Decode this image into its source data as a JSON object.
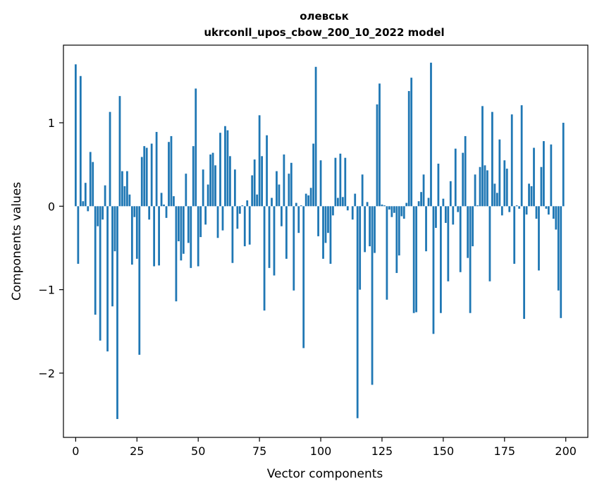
{
  "chart_data": {
    "type": "bar",
    "title_line1": "олевськ",
    "title_line2": "ukrconll_upos_cbow_200_10_2022 model",
    "xlabel": "Vector components",
    "ylabel": "Components values",
    "xlim": [
      -5,
      209
    ],
    "ylim": [
      -2.77,
      1.93
    ],
    "xticks": [
      0,
      25,
      50,
      75,
      100,
      125,
      150,
      175,
      200
    ],
    "yticks": [
      -2,
      -1,
      0,
      1
    ],
    "ytick_labels": [
      "−2",
      "−1",
      "0",
      "1"
    ],
    "bar_color": "#1f77b4",
    "grid": false,
    "legend": "none",
    "x": [
      0,
      1,
      2,
      3,
      4,
      5,
      6,
      7,
      8,
      9,
      10,
      11,
      12,
      13,
      14,
      15,
      16,
      17,
      18,
      19,
      20,
      21,
      22,
      23,
      24,
      25,
      26,
      27,
      28,
      29,
      30,
      31,
      32,
      33,
      34,
      35,
      36,
      37,
      38,
      39,
      40,
      41,
      42,
      43,
      44,
      45,
      46,
      47,
      48,
      49,
      50,
      51,
      52,
      53,
      54,
      55,
      56,
      57,
      58,
      59,
      60,
      61,
      62,
      63,
      64,
      65,
      66,
      67,
      68,
      69,
      70,
      71,
      72,
      73,
      74,
      75,
      76,
      77,
      78,
      79,
      80,
      81,
      82,
      83,
      84,
      85,
      86,
      87,
      88,
      89,
      90,
      91,
      92,
      93,
      94,
      95,
      96,
      97,
      98,
      99,
      100,
      101,
      102,
      103,
      104,
      105,
      106,
      107,
      108,
      109,
      110,
      111,
      112,
      113,
      114,
      115,
      116,
      117,
      118,
      119,
      120,
      121,
      122,
      123,
      124,
      125,
      126,
      127,
      128,
      129,
      130,
      131,
      132,
      133,
      134,
      135,
      136,
      137,
      138,
      139,
      140,
      141,
      142,
      143,
      144,
      145,
      146,
      147,
      148,
      149,
      150,
      151,
      152,
      153,
      154,
      155,
      156,
      157,
      158,
      159,
      160,
      161,
      162,
      163,
      164,
      165,
      166,
      167,
      168,
      169,
      170,
      171,
      172,
      173,
      174,
      175,
      176,
      177,
      178,
      179,
      180,
      181,
      182,
      183,
      184,
      185,
      186,
      187,
      188,
      189,
      190,
      191,
      192,
      193,
      194,
      195,
      196,
      197,
      198,
      199
    ],
    "values": [
      1.7,
      -0.69,
      1.56,
      0.06,
      0.28,
      -0.06,
      0.65,
      0.53,
      -1.3,
      -0.24,
      -1.61,
      -0.16,
      0.25,
      -1.74,
      1.13,
      -1.2,
      -0.54,
      -2.55,
      1.32,
      0.42,
      0.24,
      0.42,
      0.14,
      -0.7,
      -0.13,
      -0.63,
      -1.78,
      0.59,
      0.72,
      0.7,
      -0.16,
      0.75,
      -0.72,
      0.89,
      -0.71,
      0.16,
      0.02,
      -0.14,
      0.77,
      0.84,
      0.12,
      -1.14,
      -0.42,
      -0.65,
      -0.57,
      0.39,
      -0.44,
      -0.74,
      0.72,
      1.41,
      -0.72,
      -0.37,
      0.44,
      -0.22,
      0.26,
      0.62,
      0.64,
      0.49,
      -0.38,
      0.88,
      -0.29,
      0.96,
      0.91,
      0.6,
      -0.68,
      0.44,
      -0.27,
      -0.09,
      0.01,
      -0.48,
      0.07,
      -0.46,
      0.37,
      0.56,
      0.14,
      1.09,
      0.6,
      -1.25,
      0.85,
      -0.74,
      0.1,
      -0.83,
      0.42,
      0.26,
      -0.24,
      0.62,
      -0.63,
      0.39,
      0.52,
      -1.01,
      0.04,
      -0.32,
      0.01,
      -1.7,
      0.15,
      0.13,
      0.22,
      0.75,
      1.67,
      -0.36,
      0.55,
      -0.63,
      -0.44,
      -0.32,
      -0.69,
      -0.11,
      0.58,
      0.1,
      0.63,
      0.11,
      0.58,
      -0.05,
      0.0,
      -0.16,
      0.15,
      -2.54,
      -1.0,
      0.38,
      -0.55,
      0.05,
      -0.48,
      -2.14,
      -0.56,
      1.22,
      1.47,
      0.02,
      0.01,
      -1.12,
      -0.04,
      -0.13,
      -0.08,
      -0.8,
      -0.59,
      -0.12,
      -0.15,
      0.04,
      1.38,
      1.54,
      -1.28,
      -1.27,
      0.06,
      0.17,
      0.38,
      -0.54,
      0.1,
      1.72,
      -1.53,
      -0.26,
      0.51,
      -1.28,
      0.09,
      -0.2,
      -0.9,
      0.3,
      -0.22,
      0.69,
      -0.07,
      -0.79,
      0.64,
      0.84,
      -0.62,
      -1.28,
      -0.48,
      0.38,
      0.01,
      0.47,
      1.2,
      0.49,
      0.43,
      -0.9,
      1.13,
      0.27,
      0.16,
      0.8,
      -0.11,
      0.55,
      0.45,
      -0.07,
      1.1,
      -0.69,
      0.01,
      -0.03,
      1.21,
      -1.35,
      -0.1,
      0.27,
      0.24,
      0.7,
      -0.15,
      -0.77,
      0.47,
      0.78,
      -0.03,
      -0.1,
      0.74,
      -0.15,
      -0.28,
      -1.01,
      -1.34,
      1.0
    ]
  }
}
